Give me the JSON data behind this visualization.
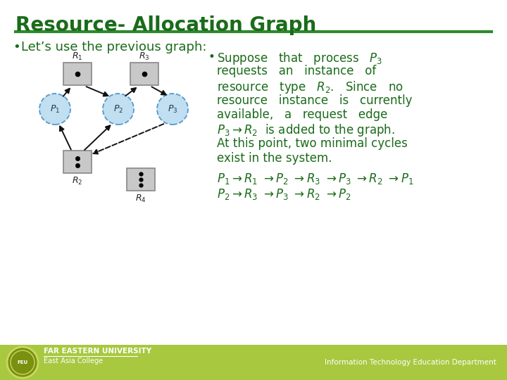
{
  "title": "Resource- Allocation Graph",
  "title_color": "#1a6b1a",
  "title_fontsize": 20,
  "bg_color": "#ffffff",
  "header_line_color": "#2d8a2d",
  "bullet1": "Let’s use the previous graph:",
  "bullet1_color": "#1a6b1a",
  "bullet1_fontsize": 13,
  "bullet2_color": "#1a6b1a",
  "bullet2_fontsize": 12,
  "cycle_color": "#1a6b1a",
  "cycle_fontsize": 12,
  "footer_bg": "#a8c840",
  "footer_text_right": "Information Technology Education Department",
  "node_process_fill": "#c0dff0",
  "node_process_edge": "#5599cc",
  "node_resource_fill": "#c8c8c8",
  "node_resource_edge": "#888888",
  "arrow_color": "#111111"
}
